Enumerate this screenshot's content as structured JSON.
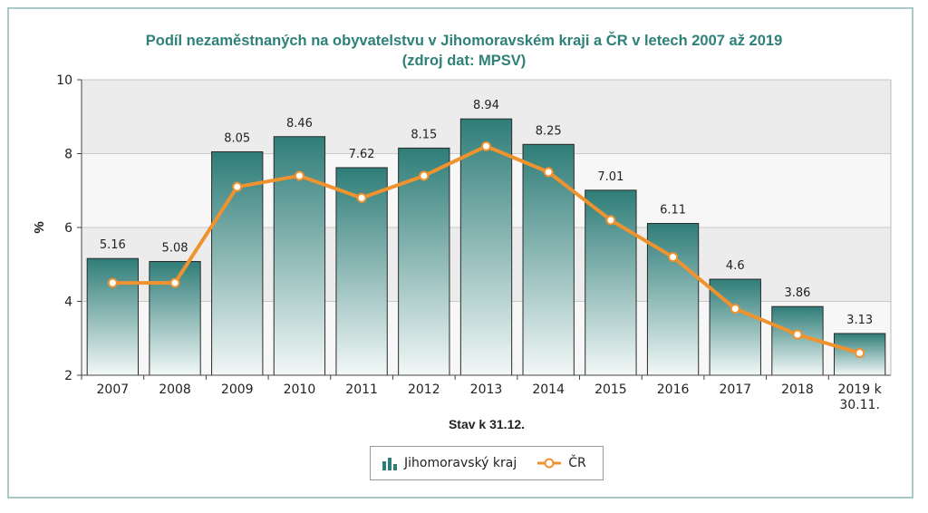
{
  "title_line1": "Podíl nezaměstnaných na obyvatelstvu v Jihomoravském kraji a ČR v letech 2007 až 2019",
  "title_line2": "(zdroj dat: MPSV)",
  "colors": {
    "bar_top": "#2f7d78",
    "bar_bottom": "#f2f8f7",
    "line": "#f0922e",
    "title": "#2e8178"
  },
  "icons": {
    "bar_series": "bar-chart-icon",
    "line_series": "line-marker-icon"
  },
  "chart_data": {
    "type": "bar",
    "categories": [
      "2007",
      "2008",
      "2009",
      "2010",
      "2011",
      "2012",
      "2013",
      "2014",
      "2015",
      "2016",
      "2017",
      "2018",
      "2019 k 30.11."
    ],
    "series": [
      {
        "name": "Jihomoravský kraj",
        "type": "bar",
        "values": [
          5.16,
          5.08,
          8.05,
          8.46,
          7.62,
          8.15,
          8.94,
          8.25,
          7.01,
          6.11,
          4.6,
          3.86,
          3.13
        ],
        "labels": [
          "5.16",
          "5.08",
          "8.05",
          "8.46",
          "7.62",
          "8.15",
          "8.94",
          "8.25",
          "7.01",
          "6.11",
          "4.6",
          "3.86",
          "3.13"
        ]
      },
      {
        "name": "ČR",
        "type": "line",
        "values": [
          4.5,
          4.5,
          7.1,
          7.4,
          6.8,
          7.4,
          8.2,
          7.5,
          6.2,
          5.2,
          3.8,
          3.1,
          2.6
        ]
      }
    ],
    "xlabel": "Stav k 31.12.",
    "ylabel": "%",
    "ylim": [
      2,
      10
    ],
    "yticks": [
      2,
      4,
      6,
      8,
      10
    ],
    "grid": true,
    "legend": "bottom-center"
  }
}
